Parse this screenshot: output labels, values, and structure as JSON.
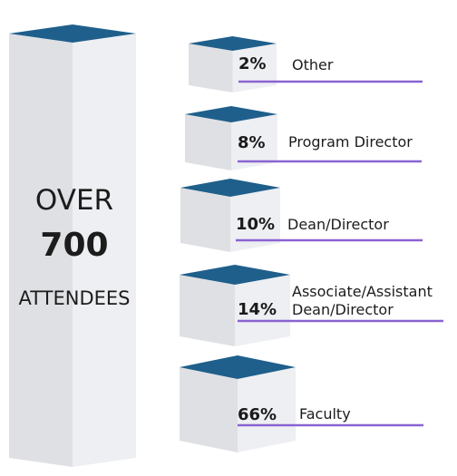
{
  "total": {
    "line1": "OVER",
    "count": "700",
    "line2": "ATTENDEES"
  },
  "chart_data": {
    "type": "bar",
    "categories": [
      "Other",
      "Program Director",
      "Dean/Director",
      "Associate/Assistant Dean/Director",
      "Faculty"
    ],
    "label_lines": [
      [
        "Other"
      ],
      [
        "Program Director"
      ],
      [
        "Dean/Director"
      ],
      [
        "Associate/Assistant",
        "Dean/Director"
      ],
      [
        "Faculty"
      ]
    ],
    "values": [
      2,
      8,
      10,
      14,
      66
    ],
    "value_labels": [
      "2%",
      "8%",
      "10%",
      "14%",
      "66%"
    ],
    "unit": "%"
  },
  "colors": {
    "top": "#1f5f8b",
    "front": "#dfe0e4",
    "side": "#eeeff2",
    "underline": "#8a63d2",
    "text": "#1c1c1c"
  }
}
